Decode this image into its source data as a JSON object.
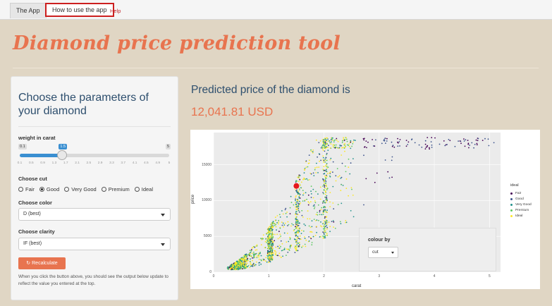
{
  "tabs": {
    "app": "The App",
    "howto": "How to use the app",
    "help": "Help"
  },
  "title": "Diamond price prediction tool",
  "sidebar": {
    "heading": "Choose the parameters of your diamond",
    "weight_label": "weight in carat",
    "slider": {
      "min": "0.1",
      "max": "5",
      "value": "1.5",
      "value_fraction": 0.285,
      "ticks": [
        "0.1",
        "0.5",
        "0.9",
        "1.3",
        "1.7",
        "2.1",
        "2.5",
        "2.9",
        "3.3",
        "3.7",
        "4.1",
        "4.5",
        "4.9",
        "5"
      ]
    },
    "cut_label": "Choose cut",
    "cut_options": [
      {
        "label": "Fair",
        "selected": false
      },
      {
        "label": "Good",
        "selected": true
      },
      {
        "label": "Very Good",
        "selected": false
      },
      {
        "label": "Premium",
        "selected": false
      },
      {
        "label": "Ideal",
        "selected": false
      }
    ],
    "color_label": "Choose color",
    "color_value": "D (best)",
    "clarity_label": "Choose clarity",
    "clarity_value": "IF (best)",
    "button_label": "Recalculate",
    "help_text": "When you click the button above, you should see the output below update to reflect the value you entered at the top."
  },
  "main": {
    "prediction_label": "Predicted price of the diamond is",
    "prediction_value": "12,041.81 USD"
  },
  "chart_data": {
    "type": "scatter",
    "xlabel": "carat",
    "ylabel": "price",
    "xlim": [
      0,
      5.2
    ],
    "ylim": [
      0,
      19500
    ],
    "x_ticks": [
      "0",
      "1",
      "2",
      "3",
      "4",
      "5"
    ],
    "y_ticks": [
      "0",
      "5000",
      "10000",
      "15000"
    ],
    "legend_title": "ideal",
    "legend_position": "right",
    "series": [
      {
        "name": "Fair",
        "color": "#440154"
      },
      {
        "name": "Good",
        "color": "#3b528b"
      },
      {
        "name": "Very Good",
        "color": "#21918c"
      },
      {
        "name": "Premium",
        "color": "#5ec962"
      },
      {
        "name": "Ideal",
        "color": "#fde725"
      }
    ],
    "highlight_point": {
      "x": 1.5,
      "y": 12041.81,
      "color": "#e41a1c"
    },
    "colour_by_label": "colour by",
    "colour_by_value": "cut"
  },
  "colors": {
    "accent": "#e8744f",
    "heading": "#2e4f6e",
    "background": "#e0d6c4"
  }
}
